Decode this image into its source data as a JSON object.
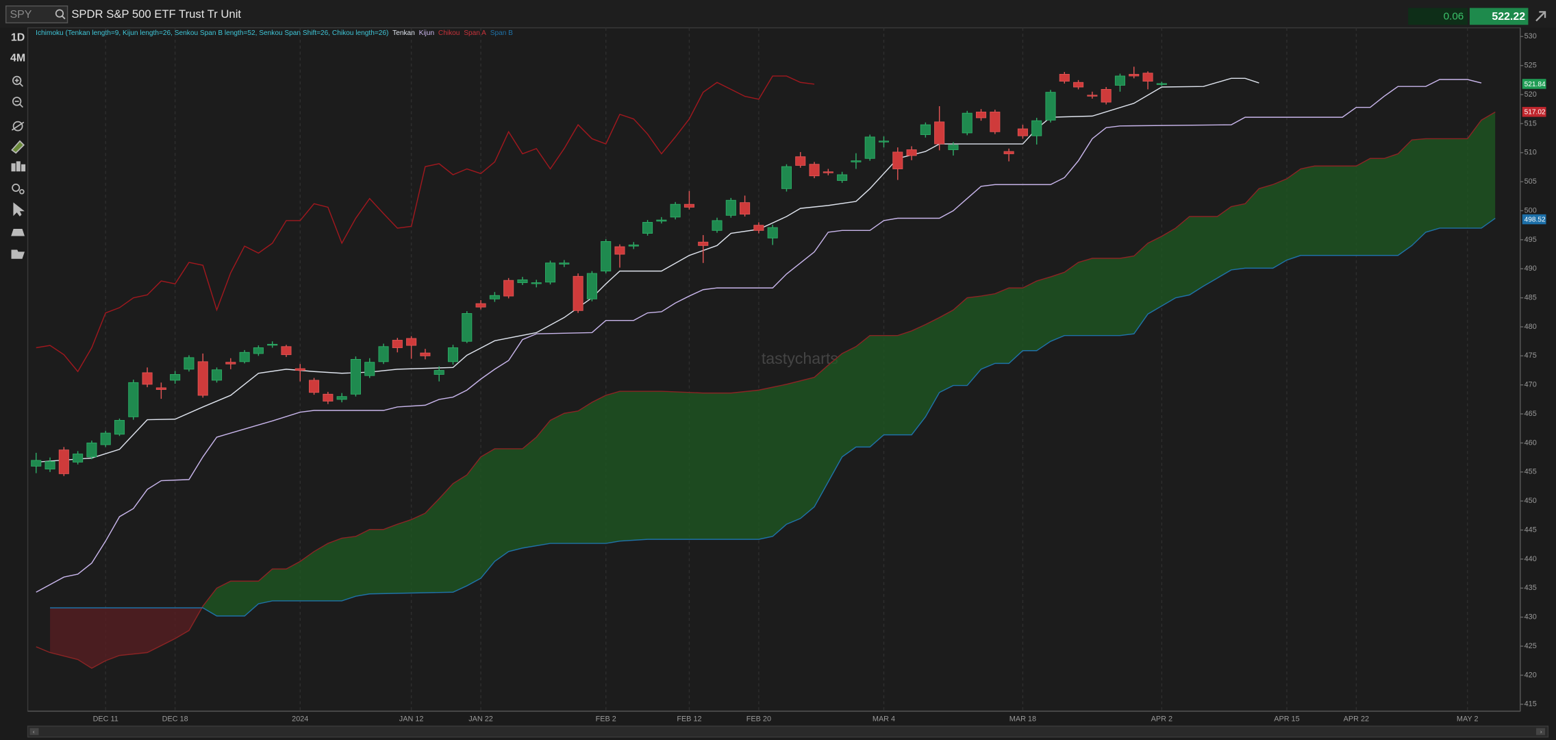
{
  "toolbar": {
    "symbol": "SPY",
    "title": "SPDR S&P 500 ETF Trust Tr Unit",
    "change": "0.06",
    "price": "522.22"
  },
  "side_menu": {
    "period": "1D",
    "range": "4M"
  },
  "watermark": "tastycharts",
  "chart_data": {
    "type": "candlestick",
    "indicator_label": "Ichimoku (Tenkan length=9, Kijun length=26, Senkou Span B length=52, Senkou Span Shift=26, Chikou length=26)",
    "xlim": [
      -0.6,
      106.8
    ],
    "ylim": [
      413.8,
      531.5
    ],
    "yticks": [
      415,
      420,
      425,
      430,
      435,
      440,
      445,
      450,
      455,
      460,
      465,
      470,
      475,
      480,
      485,
      490,
      495,
      500,
      505,
      510,
      515,
      520,
      525,
      530
    ],
    "xticks": [
      {
        "value": 5,
        "label": "DEC 11"
      },
      {
        "value": 10,
        "label": "DEC 18"
      },
      {
        "value": 19,
        "label": "2024"
      },
      {
        "value": 27,
        "label": "JAN 12"
      },
      {
        "value": 32,
        "label": "JAN 22"
      },
      {
        "value": 41,
        "label": "FEB 2"
      },
      {
        "value": 47,
        "label": "FEB 12"
      },
      {
        "value": 52,
        "label": "FEB 20"
      },
      {
        "value": 61,
        "label": "MAR 4"
      },
      {
        "value": 71,
        "label": "MAR 18"
      },
      {
        "value": 81,
        "label": "APR 2"
      },
      {
        "value": 90,
        "label": "APR 15"
      },
      {
        "value": 95,
        "label": "APR 22"
      },
      {
        "value": 103,
        "label": "MAY 2"
      }
    ],
    "grid": true,
    "up_color": "#1f8a4f",
    "down_color": "#cf3b3b",
    "cloud_up_color": "#1e5a22",
    "cloud_down_color": "#5a1e22",
    "open": [
      456,
      455.5,
      458.8,
      456.7,
      457.6,
      459.7,
      461.5,
      464.5,
      472.1,
      469.5,
      470.8,
      472.7,
      474,
      470.8,
      473.9,
      474,
      475.4,
      476.9,
      476.6,
      472.8,
      470.8,
      468.4,
      467.5,
      468.4,
      471.6,
      474,
      477.7,
      478,
      475.5,
      471.8,
      474,
      477.5,
      484,
      484.8,
      488,
      487.6,
      487.5,
      487.7,
      490.8,
      488.7,
      484.8,
      489.6,
      493.8,
      493.9,
      496.1,
      498.2,
      498.9,
      501.1,
      494.6,
      496.6,
      499.2,
      501.4,
      497.5,
      495.3,
      503.8,
      509.3,
      508,
      506.7,
      505.2,
      508.4,
      509,
      511.9,
      510.1,
      510.5,
      513.1,
      515.3,
      510.5,
      513.4,
      517,
      517,
      510.2,
      514.1,
      512.9,
      515.6,
      523.5,
      522.1,
      519.9,
      520.9,
      521.6,
      523.5,
      523.7,
      521.8
    ],
    "high": [
      458.3,
      457.5,
      459.3,
      458.6,
      460.4,
      462.1,
      464.2,
      470.9,
      473,
      470.4,
      472.4,
      475.1,
      475.4,
      473,
      474.6,
      476,
      476.8,
      477.5,
      476.9,
      473.6,
      471.2,
      468.8,
      468.6,
      474.9,
      474.6,
      477.1,
      478.1,
      478.4,
      476.2,
      473.2,
      476.9,
      482.7,
      484.6,
      486,
      488.4,
      488.6,
      488.1,
      491.4,
      491.5,
      489.2,
      489.6,
      495.1,
      494.2,
      494.6,
      498.4,
      498.9,
      501.5,
      503.4,
      495.8,
      498.8,
      502.2,
      502.6,
      498,
      497.6,
      508,
      510.1,
      508.4,
      507.2,
      506.7,
      509.9,
      513.1,
      512.8,
      510.9,
      511.1,
      515.2,
      518,
      511.8,
      517.2,
      517.5,
      517.4,
      510.7,
      514.8,
      516,
      520.8,
      523.9,
      522.5,
      520.5,
      521.3,
      523.6,
      524.8,
      524,
      522.2
    ],
    "low": [
      454.8,
      455,
      454.3,
      456.3,
      457.2,
      459.3,
      461.2,
      464,
      469.6,
      467.6,
      470.2,
      472.3,
      467.8,
      470.4,
      472.7,
      473.7,
      475,
      476.4,
      474.8,
      470.6,
      468.3,
      466.7,
      467,
      468,
      471.2,
      473.6,
      475.6,
      474.5,
      474.4,
      470.6,
      473.5,
      477.2,
      483,
      484.3,
      484.9,
      487.2,
      486.8,
      487.3,
      490.3,
      482.4,
      484.4,
      489.2,
      490.2,
      493.4,
      495.7,
      497.8,
      498.5,
      500.2,
      491,
      496.2,
      498.8,
      499,
      496.1,
      494.1,
      503.3,
      507.4,
      505.6,
      506.1,
      504.8,
      507.2,
      508.6,
      510.9,
      505.3,
      508.7,
      512.6,
      510.4,
      509.5,
      513,
      515.5,
      513.2,
      508.5,
      512.4,
      511.4,
      515.2,
      521.9,
      520.9,
      519.3,
      518.3,
      520.5,
      522.8,
      520.9,
      521.5
    ],
    "close": [
      457,
      456.8,
      454.7,
      458.1,
      460,
      461.7,
      463.9,
      470.4,
      470.1,
      469.2,
      471.8,
      474.7,
      468.2,
      472.6,
      473.6,
      475.6,
      476.4,
      477,
      475.2,
      472.5,
      468.7,
      467.2,
      468,
      474.4,
      473.9,
      476.6,
      476.4,
      476.8,
      475,
      472.5,
      476.4,
      482.3,
      483.4,
      485.4,
      485.3,
      488.1,
      487.6,
      491,
      491,
      482.8,
      489.2,
      494.7,
      492.5,
      494.1,
      498,
      498.4,
      501.1,
      500.6,
      494,
      498.3,
      501.8,
      499.4,
      496.6,
      497.1,
      507.6,
      507.8,
      506,
      506.6,
      506.2,
      508.6,
      512.7,
      512,
      507.2,
      509.5,
      514.8,
      511.5,
      511.3,
      516.8,
      516,
      513.6,
      509.8,
      512.9,
      515.5,
      520.4,
      522.3,
      521.3,
      519.8,
      518.7,
      523.2,
      523.2,
      522.3,
      521.9
    ],
    "series": [
      {
        "name": "Tenkan",
        "color": "#dfe4ee",
        "x": [
          0,
          4,
          6,
          8,
          10,
          12,
          14,
          16,
          18,
          20,
          22,
          24,
          26,
          30,
          31,
          33,
          36,
          38,
          40,
          41,
          42,
          45,
          47,
          49,
          50,
          52,
          54,
          55,
          57,
          59,
          60,
          62,
          64,
          65,
          67,
          71,
          72,
          73,
          76,
          79,
          80,
          81,
          84,
          86,
          87,
          88
        ],
        "values": [
          456.7,
          457.4,
          458.9,
          464,
          464.1,
          466.2,
          468.2,
          472,
          472.7,
          472.3,
          472,
          472.2,
          472.7,
          473,
          475.1,
          477.6,
          479,
          481.6,
          485,
          487.4,
          489.6,
          489.6,
          492.3,
          494,
          496.1,
          496.8,
          499,
          500.4,
          500.9,
          501.6,
          503.8,
          509,
          510.2,
          511.5,
          511.5,
          511.5,
          514.1,
          516.1,
          516.3,
          518.5,
          519.9,
          521.3,
          521.4,
          522.8,
          522.8,
          522
        ]
      },
      {
        "name": "Kijun",
        "color": "#c9b6ec",
        "x": [
          0,
          2,
          3,
          4,
          5,
          6,
          7,
          8,
          9,
          11,
          12,
          13,
          14,
          16,
          17,
          19,
          20,
          25,
          26,
          28,
          29,
          30,
          31,
          32,
          33,
          34,
          35,
          36,
          40,
          41,
          43,
          44,
          45,
          46,
          47,
          48,
          49,
          53,
          54,
          55,
          56,
          57,
          58,
          60,
          61,
          62,
          65,
          66,
          67,
          68,
          69,
          73,
          74,
          75,
          76,
          77,
          78,
          86,
          87,
          94,
          95,
          96,
          97,
          98,
          100,
          101,
          103,
          104
        ],
        "values": [
          434.3,
          436.9,
          437.4,
          439.3,
          443.1,
          447.3,
          448.7,
          452,
          453.5,
          453.7,
          457.6,
          461,
          461.7,
          463.1,
          463.8,
          465.3,
          465.6,
          465.6,
          466.2,
          466.5,
          467.5,
          467.9,
          469.1,
          471,
          472.7,
          474.2,
          477.8,
          478.8,
          479,
          481.1,
          481.1,
          482.4,
          482.6,
          484.1,
          485.3,
          486.4,
          486.7,
          486.7,
          489.1,
          491,
          492.9,
          496.3,
          496.6,
          496.6,
          498.3,
          498.7,
          498.7,
          500,
          502.1,
          504.2,
          504.5,
          504.5,
          505.7,
          508.6,
          512.4,
          514.3,
          514.6,
          514.8,
          516.1,
          516.1,
          517.8,
          517.8,
          519.7,
          521.4,
          521.4,
          522.6,
          522.6,
          522
        ]
      },
      {
        "name": "Chikou",
        "color": "#a0181e",
        "x": [
          0,
          1,
          2,
          3,
          4,
          5,
          6,
          7,
          8,
          9,
          10,
          11,
          12,
          13,
          14,
          15,
          16,
          17,
          18,
          19,
          20,
          21,
          22,
          23,
          24,
          25,
          26,
          27,
          28,
          29,
          30,
          31,
          32,
          33,
          34,
          35,
          36,
          37,
          38,
          39,
          40,
          41,
          42,
          43,
          44,
          45,
          46,
          47,
          48,
          49,
          50,
          51,
          52,
          53,
          54,
          55,
          56
        ],
        "values": [
          476.4,
          476.8,
          475.2,
          472.3,
          476.4,
          482.4,
          483.3,
          485,
          485.5,
          487.9,
          487.4,
          491.1,
          490.6,
          482.9,
          489.3,
          493.9,
          492.7,
          494.4,
          498.3,
          498.3,
          501.2,
          500.6,
          494.4,
          498.7,
          502.1,
          499.5,
          497,
          497.3,
          507.6,
          508.1,
          506.2,
          507.2,
          506.4,
          508.4,
          513.6,
          509.8,
          510.7,
          507.2,
          510.7,
          514.8,
          512.4,
          511.5,
          516.6,
          515.8,
          513.2,
          509.8,
          512.7,
          515.8,
          520.4,
          522.1,
          520.9,
          519.7,
          519.2,
          523.2,
          523.2,
          522.1,
          521.8
        ]
      },
      {
        "name": "Span A",
        "color": "#8a2424",
        "x": [
          0,
          1,
          3,
          4,
          5,
          6,
          8,
          9,
          10,
          11,
          12,
          13,
          14,
          16,
          17,
          18,
          19,
          20,
          21,
          22,
          23,
          24,
          25,
          26,
          27,
          28,
          29,
          30,
          31,
          32,
          33,
          35,
          36,
          37,
          38,
          39,
          40,
          41,
          42,
          45,
          48,
          50,
          52,
          53,
          54,
          56,
          57,
          58,
          59,
          60,
          62,
          63,
          64,
          65,
          66,
          67,
          68,
          69,
          70,
          71,
          72,
          73,
          74,
          75,
          76,
          78,
          79,
          80,
          81,
          82,
          83,
          85,
          86,
          87,
          88,
          89,
          90,
          91,
          92,
          95,
          96,
          97,
          98,
          99,
          100,
          103,
          104,
          105
        ],
        "values": [
          424.9,
          423.9,
          422.7,
          421.2,
          422.5,
          423.4,
          423.9,
          425.1,
          426.3,
          427.7,
          431.9,
          435,
          436.2,
          436.2,
          438.3,
          438.3,
          439.6,
          441.3,
          442.7,
          443.6,
          443.9,
          445.1,
          445.1,
          446,
          446.8,
          447.9,
          450.4,
          453,
          454.5,
          457.6,
          459,
          459,
          461,
          463.9,
          465.1,
          465.5,
          467,
          468.2,
          468.9,
          468.9,
          468.6,
          468.6,
          469.1,
          469.6,
          470.1,
          471.3,
          473.4,
          475.4,
          476.6,
          478.5,
          478.5,
          479.3,
          480.4,
          481.6,
          482.9,
          485,
          485.3,
          485.7,
          486.7,
          486.7,
          487.9,
          488.6,
          489.4,
          491.1,
          491.8,
          491.8,
          492.2,
          494.4,
          495.6,
          497,
          499,
          499,
          500.7,
          501.2,
          503.8,
          504.5,
          505.5,
          507.2,
          507.7,
          507.7,
          509,
          509,
          509.8,
          512.2,
          512.4,
          512.4,
          515.6,
          517
        ]
      },
      {
        "name": "Span B",
        "color": "#1f72a8",
        "x": [
          1,
          12,
          13,
          15,
          16,
          17,
          22,
          23,
          24,
          30,
          31,
          32,
          33,
          34,
          35,
          37,
          41,
          42,
          44,
          52,
          53,
          54,
          55,
          56,
          57,
          58,
          59,
          60,
          61,
          63,
          64,
          65,
          66,
          67,
          68,
          69,
          70,
          71,
          72,
          73,
          74,
          78,
          79,
          80,
          81,
          82,
          83,
          84,
          85,
          86,
          87,
          89,
          90,
          91,
          98,
          99,
          100,
          101,
          104,
          105
        ],
        "values": [
          431.6,
          431.6,
          430.2,
          430.2,
          432.3,
          432.8,
          432.8,
          433.6,
          434,
          434.3,
          435.4,
          436.7,
          439.6,
          441.3,
          441.9,
          442.7,
          442.7,
          443.1,
          443.4,
          443.4,
          443.9,
          446,
          447,
          449,
          453.3,
          457.6,
          459.3,
          459.3,
          461.4,
          461.4,
          464.5,
          468.7,
          469.9,
          469.9,
          472.7,
          473.7,
          473.7,
          475.9,
          475.9,
          477.5,
          478.5,
          478.5,
          478.8,
          482.2,
          483.6,
          485,
          485.5,
          487,
          488.4,
          489.8,
          490.1,
          490.1,
          491.5,
          492.3,
          492.3,
          494,
          496.3,
          497,
          497,
          498.7
        ]
      }
    ],
    "price_markers": [
      {
        "value": 521.84,
        "color": "#1f9d55"
      },
      {
        "value": 517.02,
        "color": "#c0262d"
      },
      {
        "value": 498.52,
        "color": "#1c6fa8"
      }
    ]
  }
}
